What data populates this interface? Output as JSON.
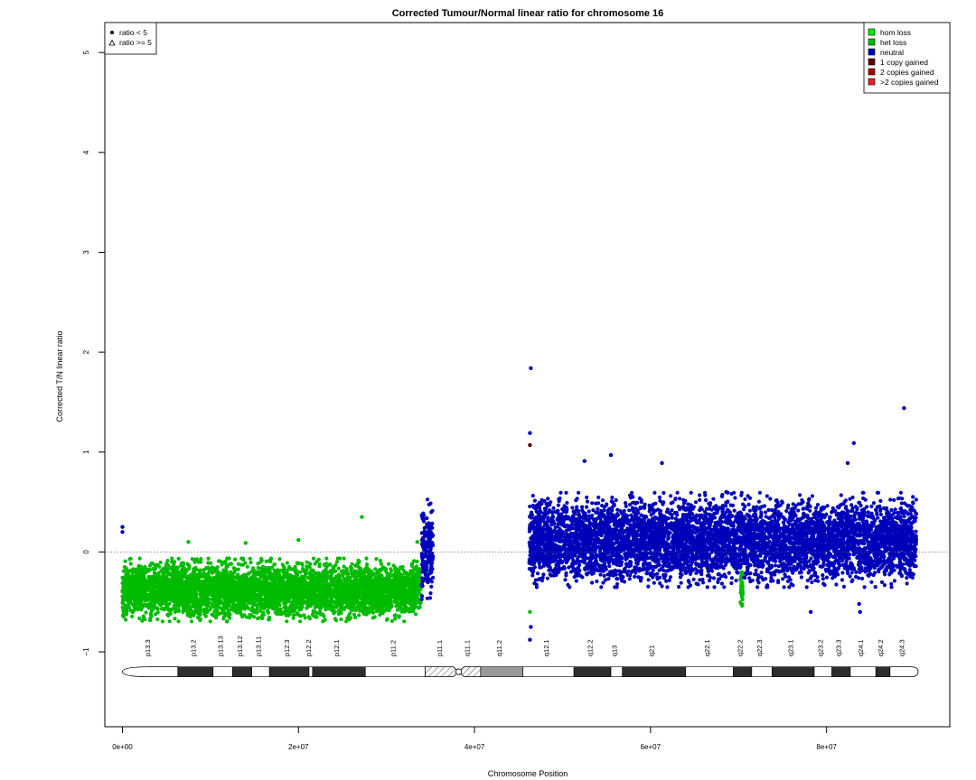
{
  "chart_data": {
    "type": "scatter",
    "title": "Corrected Tumour/Normal linear ratio for chromosome  16",
    "xlabel": "Chromosome Position",
    "ylabel": "Corrected T/N linear ratio",
    "xlim": [
      -2000000,
      94000000
    ],
    "ylim": [
      -1.75,
      5.3
    ],
    "x_ticks": [
      0,
      20000000,
      40000000,
      60000000,
      80000000
    ],
    "x_tick_labels": [
      "0e+00",
      "2e+07",
      "4e+07",
      "6e+07",
      "8e+07"
    ],
    "y_ticks": [
      -1,
      0,
      1,
      2,
      3,
      4,
      5
    ],
    "y_tick_labels": [
      "−1",
      "0",
      "1",
      "2",
      "3",
      "4",
      "5"
    ],
    "reference_line": 0,
    "shape_legend": {
      "position": "top-left",
      "entries": [
        {
          "label": "ratio < 5",
          "symbol": "filled-circle"
        },
        {
          "label": "ratio >= 5",
          "symbol": "open-triangle"
        }
      ]
    },
    "legend": {
      "position": "top-right",
      "entries": [
        {
          "label": "hom loss",
          "color": "#00ee00"
        },
        {
          "label": "het loss",
          "color": "#00bb00"
        },
        {
          "label": "neutral",
          "color": "#0000bb"
        },
        {
          "label": "1 copy gained",
          "color": "#660000"
        },
        {
          "label": "2 copies gained",
          "color": "#aa0000"
        },
        {
          "label": ">2 copies gained",
          "color": "#ee2222"
        }
      ]
    },
    "series": [
      {
        "name": "het loss",
        "color": "#00bb00",
        "segments": [
          {
            "x_start": 0,
            "x_end": 33900000,
            "center": -0.38,
            "spread": 0.3
          },
          {
            "x_start": 70200000,
            "x_end": 70500000,
            "center": -0.35,
            "spread": 0.2
          }
        ],
        "outliers": [
          [
            27200000,
            0.35
          ],
          [
            20000000,
            0.12
          ],
          [
            7500000,
            0.1
          ],
          [
            14000000,
            0.09
          ],
          [
            33500000,
            0.1
          ],
          [
            46300000,
            -0.6
          ],
          [
            70300000,
            -0.52
          ]
        ]
      },
      {
        "name": "neutral",
        "color": "#0000bb",
        "segments": [
          {
            "x_start": 34000000,
            "x_end": 35300000,
            "center": 0.0,
            "spread": 0.5
          },
          {
            "x_start": 46200000,
            "x_end": 90200000,
            "center": 0.12,
            "spread": 0.45
          }
        ],
        "outliers": [
          [
            46400000,
            1.84
          ],
          [
            88800000,
            1.44
          ],
          [
            46300000,
            1.19
          ],
          [
            83100000,
            1.09
          ],
          [
            46300000,
            -0.88
          ],
          [
            46400000,
            -0.75
          ],
          [
            52500000,
            0.91
          ],
          [
            55500000,
            0.97
          ],
          [
            82400000,
            0.89
          ],
          [
            61300000,
            0.89
          ],
          [
            68600000,
            0.6
          ],
          [
            78200000,
            -0.6
          ],
          [
            83800000,
            -0.6
          ],
          [
            83700000,
            -0.52
          ],
          [
            0,
            0.25
          ],
          [
            0,
            0.2
          ]
        ]
      },
      {
        "name": "1 copy gained",
        "color": "#660000",
        "outliers": [
          [
            46300000,
            1.07
          ]
        ]
      }
    ],
    "ideogram": {
      "bands": [
        {
          "name": "p13.3",
          "start": 0,
          "end": 6300000,
          "stain": "gneg"
        },
        {
          "name": "p13.2",
          "start": 6300000,
          "end": 10300000,
          "stain": "gpos50"
        },
        {
          "name": "p13.13",
          "start": 10300000,
          "end": 12500000,
          "stain": "gneg"
        },
        {
          "name": "p13.12",
          "start": 12500000,
          "end": 14700000,
          "stain": "gpos50"
        },
        {
          "name": "p13.11",
          "start": 14700000,
          "end": 16700000,
          "stain": "gneg"
        },
        {
          "name": "p12.3",
          "start": 16700000,
          "end": 21200000,
          "stain": "gpos50"
        },
        {
          "name": "p12.2",
          "start": 21200000,
          "end": 21600000,
          "stain": "gneg"
        },
        {
          "name": "p12.1",
          "start": 21600000,
          "end": 27600000,
          "stain": "gpos50"
        },
        {
          "name": "p11.2",
          "start": 27600000,
          "end": 34400000,
          "stain": "gneg"
        },
        {
          "name": "p11.1",
          "start": 34400000,
          "end": 38200000,
          "stain": "acen"
        },
        {
          "name": "q11.1",
          "start": 38200000,
          "end": 40700000,
          "stain": "acen"
        },
        {
          "name": "q11.2",
          "start": 40700000,
          "end": 45500000,
          "stain": "gvar"
        },
        {
          "name": "q12.1",
          "start": 45500000,
          "end": 51300000,
          "stain": "gneg"
        },
        {
          "name": "q12.2",
          "start": 51300000,
          "end": 55500000,
          "stain": "gpos50"
        },
        {
          "name": "q13",
          "start": 55500000,
          "end": 56800000,
          "stain": "gneg"
        },
        {
          "name": "q21",
          "start": 56800000,
          "end": 64000000,
          "stain": "gpos50"
        },
        {
          "name": "q22.1",
          "start": 64000000,
          "end": 69400000,
          "stain": "gneg"
        },
        {
          "name": "q22.2",
          "start": 69400000,
          "end": 71500000,
          "stain": "gpos50"
        },
        {
          "name": "q22.3",
          "start": 71500000,
          "end": 73800000,
          "stain": "gneg"
        },
        {
          "name": "q23.1",
          "start": 73800000,
          "end": 78600000,
          "stain": "gpos50"
        },
        {
          "name": "q23.2",
          "start": 78600000,
          "end": 80600000,
          "stain": "gneg"
        },
        {
          "name": "q23.3",
          "start": 80600000,
          "end": 82700000,
          "stain": "gpos50"
        },
        {
          "name": "q24.1",
          "start": 82700000,
          "end": 85600000,
          "stain": "gneg"
        },
        {
          "name": "q24.2",
          "start": 85600000,
          "end": 87200000,
          "stain": "gpos50"
        },
        {
          "name": "q24.3",
          "start": 87200000,
          "end": 90400000,
          "stain": "gneg"
        }
      ],
      "y": -1.2
    }
  }
}
